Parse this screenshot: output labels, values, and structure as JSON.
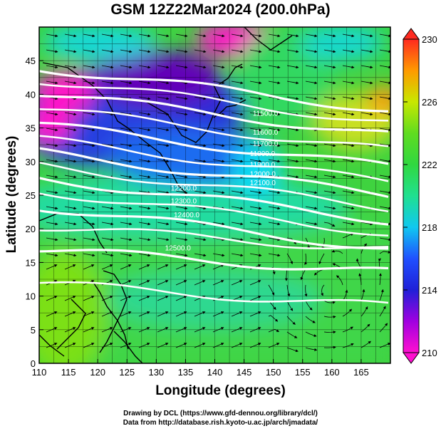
{
  "title": "GSM 12Z22Mar2024 (200.0hPa)",
  "map": {
    "xlabel": "Longitude (degrees)",
    "ylabel": "Latitude  (degrees)",
    "lon_ticks": [
      "110",
      "115",
      "120",
      "125",
      "130",
      "135",
      "140",
      "145",
      "150",
      "155",
      "160",
      "165"
    ],
    "lat_ticks": [
      "0",
      "5",
      "10",
      "15",
      "20",
      "25",
      "30",
      "35",
      "40",
      "45"
    ],
    "lon_range": [
      110,
      170
    ],
    "lat_range": [
      0,
      50
    ],
    "colorbar_labels": [
      "210",
      "214",
      "218",
      "222",
      "226",
      "230"
    ],
    "colorbar_range": [
      210,
      230
    ],
    "contour_labels": [
      {
        "text": "11500.0",
        "lon": 146.5,
        "lat": 36.8
      },
      {
        "text": "11600.0",
        "lon": 146.5,
        "lat": 34.0
      },
      {
        "text": "11700.0",
        "lon": 146.5,
        "lat": 32.3
      },
      {
        "text": "11800.0",
        "lon": 146.0,
        "lat": 30.8
      },
      {
        "text": "11900.0",
        "lon": 146.0,
        "lat": 29.2
      },
      {
        "text": "12000.0",
        "lon": 146.0,
        "lat": 27.8
      },
      {
        "text": "12100.0",
        "lon": 146.0,
        "lat": 26.5
      },
      {
        "text": "12200.0",
        "lon": 132.5,
        "lat": 25.7
      },
      {
        "text": "12300.0",
        "lon": 132.5,
        "lat": 23.8
      },
      {
        "text": "12400.0",
        "lon": 133.0,
        "lat": 21.7
      },
      {
        "text": "12500.0",
        "lon": 131.5,
        "lat": 16.8
      }
    ]
  },
  "credits": {
    "line1": "Drawing by DCL (https://www.gfd-dennou.org/library/dcl/)",
    "line2": "Data from http://database.rish.kyoto-u.ac.jp/arch/jmadata/"
  },
  "colors": {
    "purple": "#6a00b0",
    "blue": "#1a2fd0",
    "cyan": "#00d8e0",
    "green": "#3ad23a",
    "yellow": "#d8e400",
    "magenta": "#ff1ac8"
  }
}
